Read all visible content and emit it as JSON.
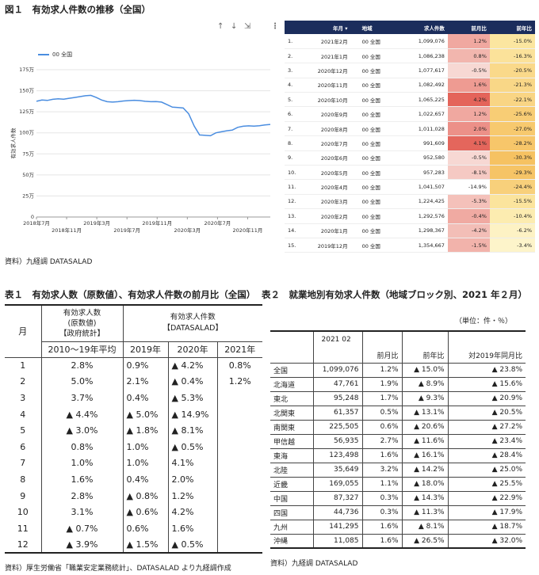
{
  "figure1": {
    "title": "図１　有効求人件数の推移（全国）",
    "source": "資料）九経調 DATASALAD",
    "toolbar": [
      "↑",
      "↓",
      "⇲",
      "⋮"
    ]
  },
  "chart_data": {
    "type": "line",
    "series": [
      {
        "name": "00 全国",
        "color": "#4a8de0",
        "values": [
          1375,
          1390,
          1385,
          1398,
          1405,
          1400,
          1410,
          1420,
          1430,
          1440,
          1445,
          1420,
          1390,
          1370,
          1365,
          1370,
          1378,
          1383,
          1387,
          1383,
          1375,
          1370,
          1372,
          1365,
          1335,
          1305,
          1300,
          1295,
          1225,
          1080,
          975,
          970,
          965,
          1000,
          1012,
          1025,
          1032,
          1065,
          1078,
          1083,
          1080,
          1085,
          1093,
          1100
        ]
      }
    ],
    "x_tick_labels_upper": [
      "2018年7月",
      "2019年3月",
      "2019年11月",
      "2020年7月"
    ],
    "x_tick_labels_lower": [
      "2018年11月",
      "2019年7月",
      "2020年3月",
      "2020年11月"
    ],
    "y_ticks": [
      "0",
      "25万",
      "50万",
      "75万",
      "100万",
      "125万",
      "150万",
      "175万"
    ],
    "ylabel": "有効求人件数",
    "ylim": [
      0,
      1750
    ],
    "y_unit": "千件",
    "x_range": [
      "2018-07",
      "2021-02"
    ],
    "grid": true,
    "legend_position": "top-left"
  },
  "rank_table": {
    "headers": {
      "no": "",
      "date": "年月 ▾",
      "area": "地域",
      "value": "求人件数",
      "mom": "前月比",
      "yoy": "前年比"
    },
    "rows": [
      {
        "no": "1.",
        "date": "2021年2月",
        "area": "00 全国",
        "value": "1,099,076",
        "mom": "1.2%",
        "yoy": "-15.0%",
        "mom_color": "#f0a8a0",
        "yoy_color": "#fbe6a0"
      },
      {
        "no": "2.",
        "date": "2021年1月",
        "area": "00 全国",
        "value": "1,086,238",
        "mom": "0.8%",
        "yoy": "-16.3%",
        "mom_color": "#f2b6ae",
        "yoy_color": "#fbe29a"
      },
      {
        "no": "3.",
        "date": "2020年12月",
        "area": "00 全国",
        "value": "1,077,617",
        "mom": "-0.5%",
        "yoy": "-20.5%",
        "mom_color": "#f7d8d3",
        "yoy_color": "#fad98a"
      },
      {
        "no": "4.",
        "date": "2020年11月",
        "area": "00 全国",
        "value": "1,082,492",
        "mom": "1.6%",
        "yoy": "-21.3%",
        "mom_color": "#ee9b92",
        "yoy_color": "#f9d787"
      },
      {
        "no": "5.",
        "date": "2020年10月",
        "area": "00 全国",
        "value": "1,065,225",
        "mom": "4.2%",
        "yoy": "-22.1%",
        "mom_color": "#e4645a",
        "yoy_color": "#f9d584"
      },
      {
        "no": "6.",
        "date": "2020年9月",
        "area": "00 全国",
        "value": "1,022,657",
        "mom": "1.2%",
        "yoy": "-25.6%",
        "mom_color": "#f0a8a0",
        "yoy_color": "#f8cd75"
      },
      {
        "no": "7.",
        "date": "2020年8月",
        "area": "00 全国",
        "value": "1,011,028",
        "mom": "2.0%",
        "yoy": "-27.0%",
        "mom_color": "#ec9088",
        "yoy_color": "#f7c96e"
      },
      {
        "no": "8.",
        "date": "2020年7月",
        "area": "00 全国",
        "value": "991,609",
        "mom": "4.1%",
        "yoy": "-28.2%",
        "mom_color": "#e4665c",
        "yoy_color": "#f7c66a"
      },
      {
        "no": "9.",
        "date": "2020年6月",
        "area": "00 全国",
        "value": "952,580",
        "mom": "-0.5%",
        "yoy": "-30.3%",
        "mom_color": "#f7d8d3",
        "yoy_color": "#f6c262"
      },
      {
        "no": "10.",
        "date": "2020年5月",
        "area": "00 全国",
        "value": "957,283",
        "mom": "-8.1%",
        "yoy": "-29.3%",
        "mom_color": "#f5c9c3",
        "yoy_color": "#f6c466"
      },
      {
        "no": "11.",
        "date": "2020年4月",
        "area": "00 全国",
        "value": "1,041,507",
        "mom": "-14.9%",
        "yoy": "-24.4%",
        "mom_color": "#ffffff",
        "yoy_color": "#f8d07b"
      },
      {
        "no": "12.",
        "date": "2020年3月",
        "area": "00 全国",
        "value": "1,224,425",
        "mom": "-5.3%",
        "yoy": "-15.5%",
        "mom_color": "#f4c1ba",
        "yoy_color": "#fbe49d"
      },
      {
        "no": "13.",
        "date": "2020年2月",
        "area": "00 全国",
        "value": "1,292,576",
        "mom": "-0.4%",
        "yoy": "-10.4%",
        "mom_color": "#f0aaa2",
        "yoy_color": "#fcecb0"
      },
      {
        "no": "14.",
        "date": "2020年1月",
        "area": "00 全国",
        "value": "1,298,367",
        "mom": "-4.2%",
        "yoy": "-6.2%",
        "mom_color": "#f3beb7",
        "yoy_color": "#fdf2c4"
      },
      {
        "no": "15.",
        "date": "2019年12月",
        "area": "00 全国",
        "value": "1,354,667",
        "mom": "-1.5%",
        "yoy": "-3.4%",
        "mom_color": "#f2b3ab",
        "yoy_color": "#fdf4ca"
      }
    ]
  },
  "table1": {
    "title": "表１　有効求人数（原数値）、有効求人件数の前月比（全国）",
    "head_month": "月",
    "head_col1": [
      "有効求人数",
      "(原数値)",
      "【政府統計】"
    ],
    "head_col2": [
      "有効求人件数",
      "【DATASALAD】"
    ],
    "sub_heads": [
      "2010～19年平均",
      "2019年",
      "2020年",
      "2021年"
    ],
    "rows": [
      {
        "m": "1",
        "a": "2.8%",
        "b": "0.9%",
        "c": "▲ 4.2%",
        "d": "0.8%"
      },
      {
        "m": "2",
        "a": "5.0%",
        "b": "2.1%",
        "c": "▲ 0.4%",
        "d": "1.2%"
      },
      {
        "m": "3",
        "a": "3.7%",
        "b": "0.4%",
        "c": "▲ 5.3%",
        "d": ""
      },
      {
        "m": "4",
        "a": "▲ 4.4%",
        "b": "▲ 5.0%",
        "c": "▲ 14.9%",
        "d": ""
      },
      {
        "m": "5",
        "a": "▲ 3.0%",
        "b": "▲ 1.8%",
        "c": "▲ 8.1%",
        "d": ""
      },
      {
        "m": "6",
        "a": "0.8%",
        "b": "1.0%",
        "c": "▲ 0.5%",
        "d": ""
      },
      {
        "m": "7",
        "a": "1.0%",
        "b": "1.0%",
        "c": "4.1%",
        "d": ""
      },
      {
        "m": "8",
        "a": "1.6%",
        "b": "0.4%",
        "c": "2.0%",
        "d": ""
      },
      {
        "m": "9",
        "a": "2.8%",
        "b": "▲ 0.8%",
        "c": "1.2%",
        "d": ""
      },
      {
        "m": "10",
        "a": "3.1%",
        "b": "▲ 0.6%",
        "c": "4.2%",
        "d": ""
      },
      {
        "m": "11",
        "a": "▲ 0.7%",
        "b": "0.6%",
        "c": "1.6%",
        "d": ""
      },
      {
        "m": "12",
        "a": "▲ 3.9%",
        "b": "▲ 1.5%",
        "c": "▲ 0.5%",
        "d": ""
      }
    ],
    "source": "資料）厚生労働省「職業安定業務統計」、DATASALAD より九経調作成"
  },
  "table2": {
    "title": "表２　就業地別有効求人件数（地域ブロック別、2021 年２月）",
    "unit": "（単位：件・％）",
    "head_period": "2021 02",
    "heads": [
      "前月比",
      "前年比",
      "対2019年同月比"
    ],
    "rows": [
      {
        "r": "全国",
        "v": "1,099,076",
        "mom": "1.2%",
        "yoy": "▲ 15.0%",
        "vs19": "▲ 23.8%"
      },
      {
        "r": "北海道",
        "v": "47,761",
        "mom": "1.9%",
        "yoy": "▲ 8.9%",
        "vs19": "▲ 15.6%"
      },
      {
        "r": "東北",
        "v": "95,248",
        "mom": "1.7%",
        "yoy": "▲ 9.3%",
        "vs19": "▲ 20.9%"
      },
      {
        "r": "北関東",
        "v": "61,357",
        "mom": "0.5%",
        "yoy": "▲ 13.1%",
        "vs19": "▲ 20.5%"
      },
      {
        "r": "南関東",
        "v": "225,505",
        "mom": "0.6%",
        "yoy": "▲ 20.6%",
        "vs19": "▲ 27.2%"
      },
      {
        "r": "甲信越",
        "v": "56,935",
        "mom": "2.7%",
        "yoy": "▲ 11.6%",
        "vs19": "▲ 23.4%"
      },
      {
        "r": "東海",
        "v": "123,498",
        "mom": "1.6%",
        "yoy": "▲ 16.1%",
        "vs19": "▲ 28.4%"
      },
      {
        "r": "北陸",
        "v": "35,649",
        "mom": "3.2%",
        "yoy": "▲ 14.2%",
        "vs19": "▲ 25.0%"
      },
      {
        "r": "近畿",
        "v": "169,055",
        "mom": "1.1%",
        "yoy": "▲ 18.0%",
        "vs19": "▲ 25.5%"
      },
      {
        "r": "中国",
        "v": "87,327",
        "mom": "0.3%",
        "yoy": "▲ 14.3%",
        "vs19": "▲ 22.9%"
      },
      {
        "r": "四国",
        "v": "44,736",
        "mom": "0.3%",
        "yoy": "▲ 11.3%",
        "vs19": "▲ 17.9%"
      },
      {
        "r": "九州",
        "v": "141,295",
        "mom": "1.6%",
        "yoy": "▲ 8.1%",
        "vs19": "▲ 18.7%"
      },
      {
        "r": "沖縄",
        "v": "11,085",
        "mom": "1.6%",
        "yoy": "▲ 26.5%",
        "vs19": "▲ 32.0%"
      }
    ],
    "source": "資料）九経調 DATASALAD"
  }
}
